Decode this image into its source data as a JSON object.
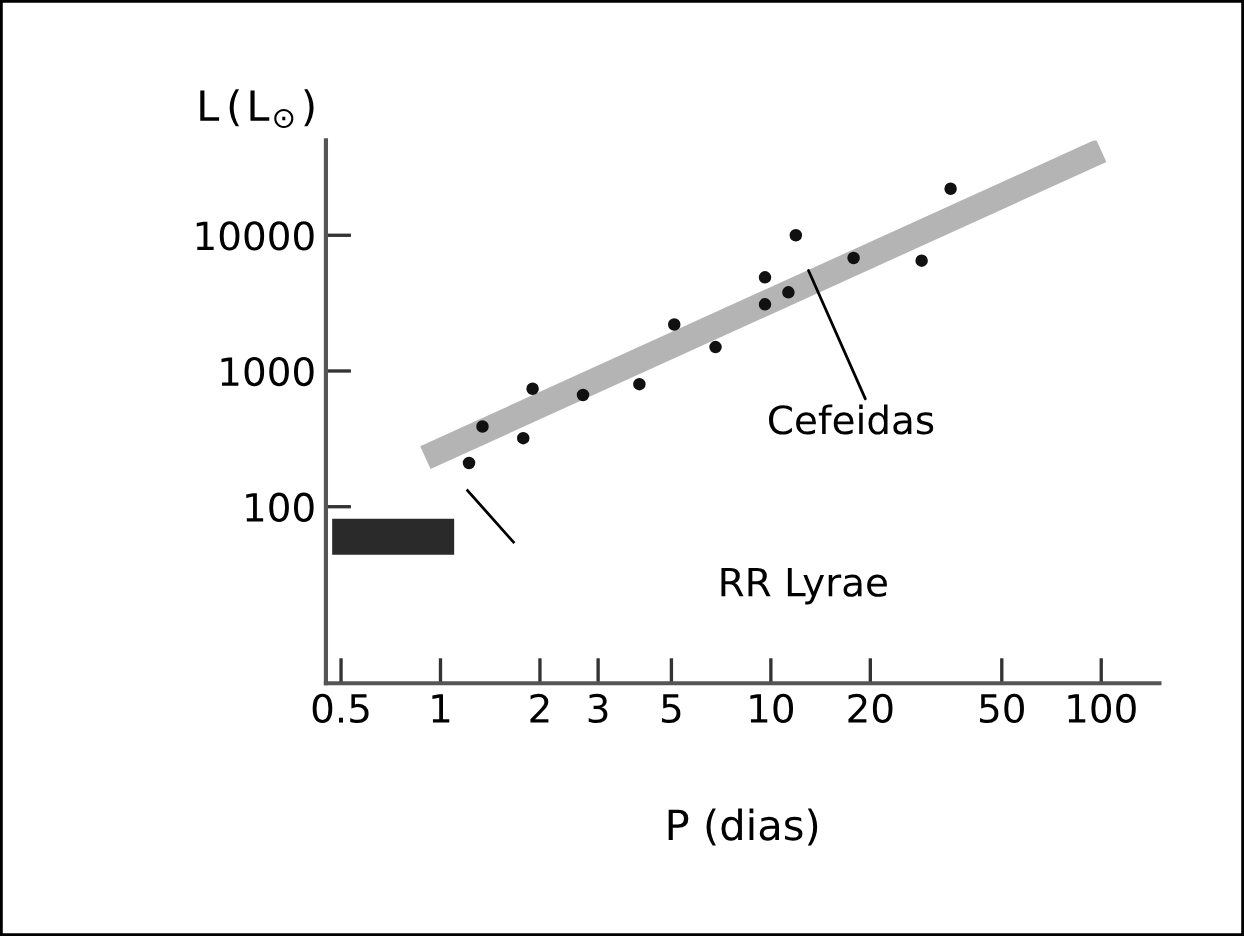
{
  "chart_data": {
    "type": "scatter",
    "xlabel": "P (dias)",
    "ylabel": "L(L$_{⊙}$)",
    "log": "xy",
    "xlim": [
      0.45,
      150
    ],
    "ylim": [
      5,
      50000
    ],
    "xticks": [
      0.5,
      1,
      2,
      3,
      5,
      10,
      20,
      50,
      100
    ],
    "yticks": [
      100,
      1000,
      10000
    ],
    "grid": false,
    "legend": false,
    "series": [
      {
        "type": "line",
        "marker": "none",
        "color": "#b4b4b4",
        "x": [
          0.9,
          100
        ],
        "values": [
          230,
          42000
        ]
      },
      {
        "type": "line",
        "marker": "none",
        "color": "#2a2a2a",
        "x": [
          0.47,
          1.1
        ],
        "values": [
          60,
          60
        ]
      },
      {
        "marker": "circle",
        "color": "#111111",
        "x": [
          1.22,
          1.34,
          1.78,
          1.9,
          2.7,
          4.0,
          5.1,
          6.8,
          9.6,
          9.6,
          11.3,
          11.9,
          17.8,
          28.6,
          35
        ],
        "values": [
          210,
          390,
          320,
          740,
          665,
          800,
          2200,
          1500,
          3100,
          4900,
          3800,
          10000,
          6800,
          6500,
          22000
        ]
      }
    ],
    "annotations": [
      {
        "text": "Cefeidas",
        "x": 13,
        "y": 5500
      },
      "RR Lyrae"
    ]
  }
}
